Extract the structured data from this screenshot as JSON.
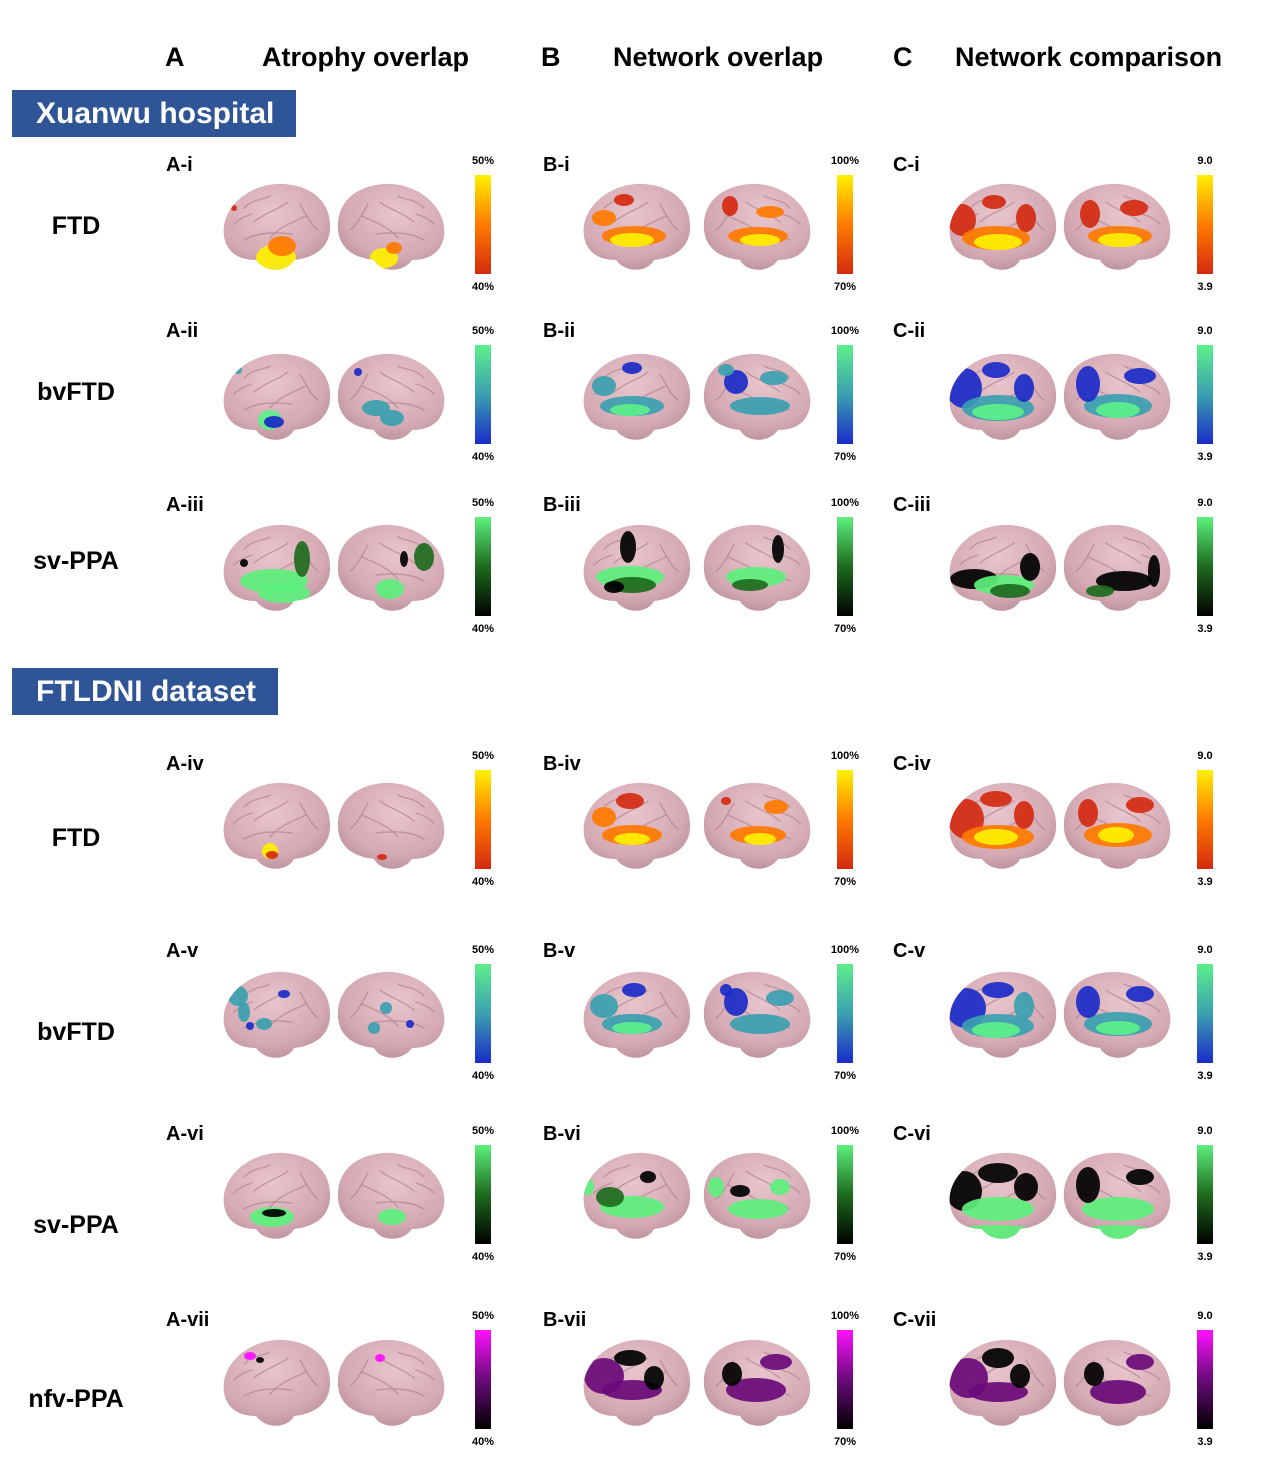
{
  "columns": [
    {
      "letter": "A",
      "title": "Atrophy overlap"
    },
    {
      "letter": "B",
      "title": "Network overlap"
    },
    {
      "letter": "C",
      "title": "Network comparison"
    }
  ],
  "sections": [
    "Xuanwu hospital",
    "FTLDNI dataset"
  ],
  "scales": {
    "A": {
      "top": "50%",
      "bottom": "40%"
    },
    "B": {
      "top": "100%",
      "bottom": "70%"
    },
    "C": {
      "top": "9.0",
      "bottom": "3.9"
    }
  },
  "colors": {
    "brain": "#d4a9b3",
    "section_bg": "#2f5596",
    "red_yellow": [
      "#d42a10",
      "#ff7a00",
      "#fff000"
    ],
    "blue_green": [
      "#1a2bc8",
      "#3aa0b0",
      "#5cf08a"
    ],
    "black_green": [
      "#000000",
      "#1e6b1e",
      "#5cf07c"
    ],
    "black_magenta": [
      "#000000",
      "#6a0a7a",
      "#ff10ff"
    ]
  },
  "rows": [
    {
      "group": "FTD",
      "scheme": "red_yellow",
      "panels": [
        "A-i",
        "B-i",
        "C-i"
      ],
      "section": 0
    },
    {
      "group": "bvFTD",
      "scheme": "blue_green",
      "panels": [
        "A-ii",
        "B-ii",
        "C-ii"
      ],
      "section": 0
    },
    {
      "group": "sv-PPA",
      "scheme": "black_green",
      "panels": [
        "A-iii",
        "B-iii",
        "C-iii"
      ],
      "section": 0
    },
    {
      "group": "FTD",
      "scheme": "red_yellow",
      "panels": [
        "A-iv",
        "B-iv",
        "C-iv"
      ],
      "section": 1
    },
    {
      "group": "bvFTD",
      "scheme": "blue_green",
      "panels": [
        "A-v",
        "B-v",
        "C-v"
      ],
      "section": 1
    },
    {
      "group": "sv-PPA",
      "scheme": "black_green",
      "panels": [
        "A-vi",
        "B-vi",
        "C-vi"
      ],
      "section": 1
    },
    {
      "group": "nfv-PPA",
      "scheme": "black_magenta",
      "panels": [
        "A-vii",
        "B-vii",
        "C-vii"
      ],
      "section": 1
    }
  ]
}
